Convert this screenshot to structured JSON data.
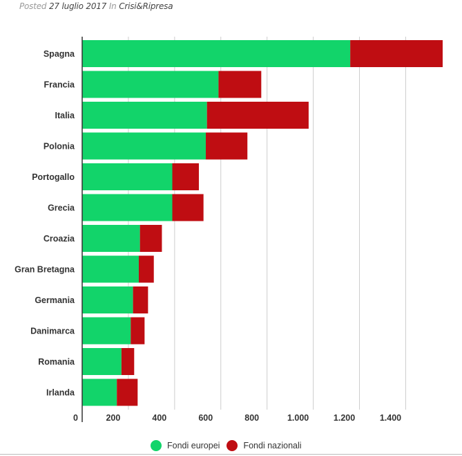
{
  "post": {
    "posted_prefix": "Posted",
    "date": "27 luglio 2017",
    "in_prefix": "In",
    "category": "Crisi&Ripresa"
  },
  "colors": {
    "fondi_europei": "#12d46a",
    "fondi_nazionali": "#bf0d12",
    "grid": "#cccccc",
    "axis": "#333333"
  },
  "chart_data": {
    "type": "bar",
    "orientation": "horizontal",
    "stacked": true,
    "categories": [
      "Spagna",
      "Francia",
      "Italia",
      "Polonia",
      "Portogallo",
      "Grecia",
      "Croazia",
      "Gran Bretagna",
      "Germania",
      "Danimarca",
      "Romania",
      "Irlanda"
    ],
    "series": [
      {
        "name": "Fondi europei",
        "values": [
          1160,
          590,
          540,
          535,
          390,
          390,
          250,
          245,
          220,
          210,
          170,
          150
        ]
      },
      {
        "name": "Fondi nazionali",
        "values": [
          400,
          185,
          440,
          180,
          115,
          135,
          95,
          65,
          65,
          60,
          55,
          90
        ]
      }
    ],
    "xlim": [
      0,
      1560
    ],
    "x_ticks": [
      0,
      200,
      400,
      600,
      800,
      1000,
      1200,
      1400
    ],
    "x_tick_labels": [
      "0",
      "200",
      "400",
      "600",
      "800",
      "1.000",
      "1.200",
      "1.400"
    ],
    "grid": true,
    "legend_position": "bottom-center",
    "title": "",
    "xlabel": "",
    "ylabel": ""
  }
}
